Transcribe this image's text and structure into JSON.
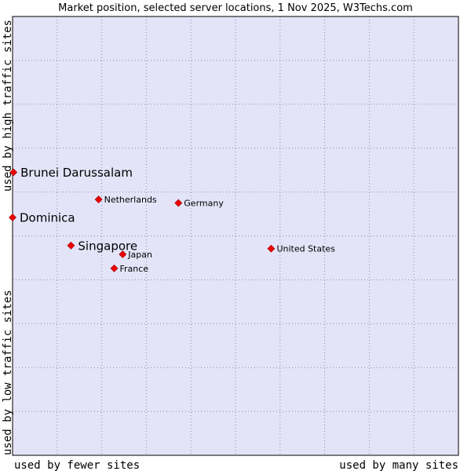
{
  "chart_data": {
    "type": "scatter",
    "title": "Market position, selected server locations, 1 Nov 2025, W3Techs.com",
    "xlabel_left": "used by fewer sites",
    "xlabel_right": "used by many sites",
    "ylabel_top": "used by high traffic sites",
    "ylabel_bottom": "used by low traffic sites",
    "xlim": [
      0,
      100
    ],
    "ylim": [
      0,
      100
    ],
    "grid": true,
    "points": [
      {
        "label": "Brunei Darussalam",
        "x": 0.2,
        "y": 64.5,
        "highlight": true
      },
      {
        "label": "Dominica",
        "x": 0.0,
        "y": 54.2,
        "highlight": true
      },
      {
        "label": "Singapore",
        "x": 13.1,
        "y": 47.8,
        "highlight": true
      },
      {
        "label": "Netherlands",
        "x": 19.3,
        "y": 58.3,
        "highlight": false
      },
      {
        "label": "Germany",
        "x": 37.2,
        "y": 57.5,
        "highlight": false
      },
      {
        "label": "United States",
        "x": 58.0,
        "y": 47.1,
        "highlight": false
      },
      {
        "label": "Japan",
        "x": 24.7,
        "y": 45.8,
        "highlight": false
      },
      {
        "label": "France",
        "x": 22.8,
        "y": 42.6,
        "highlight": false
      }
    ]
  },
  "colors": {
    "plot_bg": "#e4e4f8",
    "grid": "#8a8aa8",
    "border": "#000000",
    "marker": "#ee0000",
    "marker_edge": "#990000"
  }
}
